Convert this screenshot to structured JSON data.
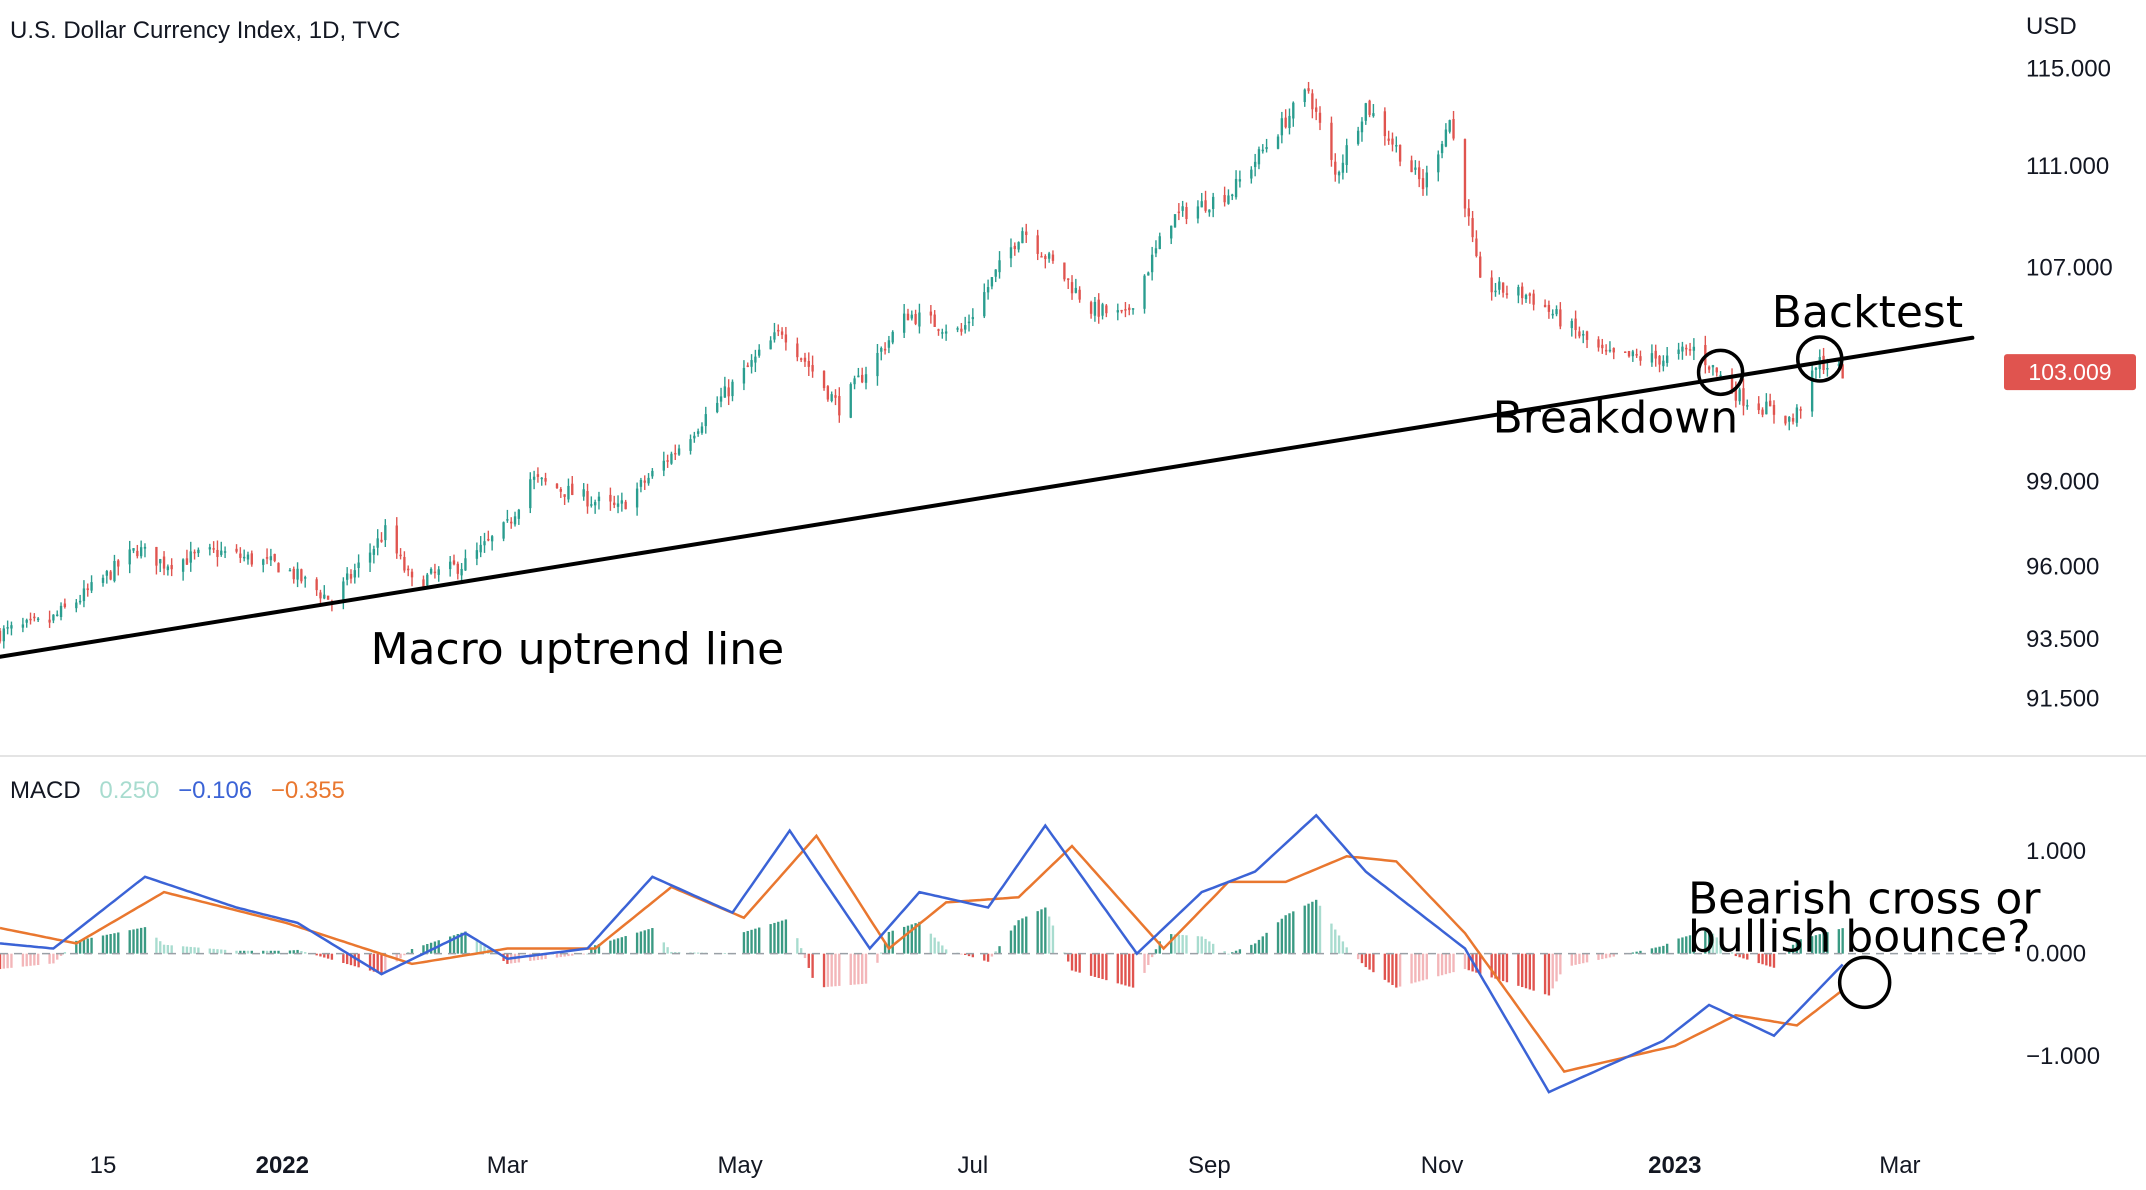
{
  "header": {
    "title": "U.S. Dollar Currency Index, 1D, TVC",
    "currency": "USD"
  },
  "price_badge": {
    "value": "103.009",
    "color": "#e0544f"
  },
  "macd_legend": {
    "label": "MACD",
    "histogram": "0.250",
    "macd": "−0.106",
    "signal": "−0.355",
    "histogram_color": "#a8dccf",
    "macd_color": "#3b63d6",
    "signal_color": "#e9772f"
  },
  "colors": {
    "up": "#2a9d8f",
    "down": "#e0544f",
    "hist_up_strong": "#3a9a83",
    "hist_up_weak": "#a8dccf",
    "hist_down_strong": "#e0544f",
    "hist_down_weak": "#f3b6b9",
    "annotation": "#000000",
    "axis_text": "#131722",
    "divider": "#e4e4e4"
  },
  "annotations": {
    "trendline_label": "Macro uptrend line",
    "breakdown_label": "Breakdown",
    "backtest_label": "Backtest",
    "question_line1": "Bearish cross or",
    "question_line2": "bullish bounce?"
  },
  "chart_data": [
    {
      "type": "candlestick",
      "title": "U.S. Dollar Currency Index, 1D, TVC",
      "ylabel": "USD",
      "y_scale": "log",
      "yticks": [
        "115.000",
        "111.000",
        "107.000",
        "99.000",
        "96.000",
        "93.500",
        "91.500"
      ],
      "ytick_values": [
        115,
        111,
        107,
        99,
        96,
        93.5,
        91.5
      ],
      "x_tick_labels": [
        "15",
        "2022",
        "Mar",
        "May",
        "Jul",
        "Sep",
        "Nov",
        "2023",
        "Mar"
      ],
      "x_tick_dates": [
        "2021-11-15",
        "2022-01-01",
        "2022-03-01",
        "2022-05-01",
        "2022-07-01",
        "2022-09-01",
        "2022-11-01",
        "2023-01-01",
        "2023-03-01"
      ],
      "x_range": [
        "2021-10-19",
        "2023-03-22"
      ],
      "y_range": [
        90.3,
        116.2
      ],
      "last_value": 103.009,
      "close_path": [
        [
          "2021-10-19",
          93.7
        ],
        [
          "2021-11-01",
          94.1
        ],
        [
          "2021-11-12",
          95.2
        ],
        [
          "2021-11-24",
          96.6
        ],
        [
          "2021-12-01",
          96.1
        ],
        [
          "2021-12-15",
          96.5
        ],
        [
          "2022-01-01",
          96.0
        ],
        [
          "2022-01-14",
          94.8
        ],
        [
          "2022-01-28",
          97.2
        ],
        [
          "2022-02-04",
          95.4
        ],
        [
          "2022-02-18",
          96.1
        ],
        [
          "2022-03-01",
          97.4
        ],
        [
          "2022-03-07",
          99.1
        ],
        [
          "2022-03-30",
          98.0
        ],
        [
          "2022-04-14",
          100.1
        ],
        [
          "2022-05-12",
          104.6
        ],
        [
          "2022-05-27",
          101.7
        ],
        [
          "2022-06-14",
          105.2
        ],
        [
          "2022-06-28",
          104.5
        ],
        [
          "2022-07-14",
          108.5
        ],
        [
          "2022-08-01",
          105.4
        ],
        [
          "2022-08-10",
          105.1
        ],
        [
          "2022-08-22",
          108.9
        ],
        [
          "2022-09-07",
          110.0
        ],
        [
          "2022-09-27",
          114.1
        ],
        [
          "2022-10-04",
          110.6
        ],
        [
          "2022-10-12",
          113.5
        ],
        [
          "2022-10-27",
          110.2
        ],
        [
          "2022-11-03",
          112.9
        ],
        [
          "2022-11-11",
          106.3
        ],
        [
          "2022-11-24",
          105.9
        ],
        [
          "2022-12-14",
          103.6
        ],
        [
          "2022-12-30",
          103.5
        ],
        [
          "2023-01-06",
          103.9
        ],
        [
          "2023-01-18",
          102.1
        ],
        [
          "2023-02-01",
          101.2
        ],
        [
          "2023-02-08",
          103.4
        ],
        [
          "2023-02-14",
          103.009
        ]
      ],
      "trendline": {
        "label": "Macro uptrend line",
        "from": [
          "2021-10-19",
          92.9
        ],
        "to": [
          "2023-03-20",
          104.3
        ]
      },
      "markers": [
        {
          "label": "Breakdown",
          "date": "2023-01-13",
          "value": 103.0
        },
        {
          "label": "Backtest",
          "date": "2023-02-08",
          "value": 103.5
        }
      ]
    },
    {
      "type": "macd",
      "title": "MACD",
      "legend": {
        "histogram": 0.25,
        "macd": -0.106,
        "signal": -0.355
      },
      "yticks": [
        "1.000",
        "0.000",
        "−1.000"
      ],
      "ytick_values": [
        1,
        0,
        -1
      ],
      "y_range": [
        -1.72,
        1.45
      ],
      "macd_path": [
        [
          "2021-10-19",
          0.1
        ],
        [
          "2021-11-02",
          0.05
        ],
        [
          "2021-11-26",
          0.75
        ],
        [
          "2021-12-20",
          0.45
        ],
        [
          "2022-01-05",
          0.3
        ],
        [
          "2022-01-27",
          -0.2
        ],
        [
          "2022-02-18",
          0.2
        ],
        [
          "2022-03-01",
          -0.05
        ],
        [
          "2022-03-22",
          0.05
        ],
        [
          "2022-04-08",
          0.75
        ],
        [
          "2022-04-29",
          0.4
        ],
        [
          "2022-05-14",
          1.2
        ],
        [
          "2022-06-04",
          0.05
        ],
        [
          "2022-06-17",
          0.6
        ],
        [
          "2022-07-05",
          0.45
        ],
        [
          "2022-07-20",
          1.25
        ],
        [
          "2022-08-13",
          0.0
        ],
        [
          "2022-08-30",
          0.6
        ],
        [
          "2022-09-13",
          0.8
        ],
        [
          "2022-09-29",
          1.35
        ],
        [
          "2022-10-12",
          0.8
        ],
        [
          "2022-11-07",
          0.05
        ],
        [
          "2022-11-29",
          -1.35
        ],
        [
          "2022-12-29",
          -0.85
        ],
        [
          "2023-01-10",
          -0.5
        ],
        [
          "2023-01-27",
          -0.8
        ],
        [
          "2023-02-14",
          -0.106
        ]
      ],
      "signal_path": [
        [
          "2021-10-19",
          0.25
        ],
        [
          "2021-11-08",
          0.1
        ],
        [
          "2021-12-01",
          0.6
        ],
        [
          "2022-01-02",
          0.3
        ],
        [
          "2022-02-04",
          -0.1
        ],
        [
          "2022-03-01",
          0.05
        ],
        [
          "2022-03-24",
          0.05
        ],
        [
          "2022-04-13",
          0.65
        ],
        [
          "2022-05-02",
          0.35
        ],
        [
          "2022-05-21",
          1.15
        ],
        [
          "2022-06-09",
          0.05
        ],
        [
          "2022-06-24",
          0.5
        ],
        [
          "2022-07-13",
          0.55
        ],
        [
          "2022-07-27",
          1.05
        ],
        [
          "2022-08-20",
          0.05
        ],
        [
          "2022-09-06",
          0.7
        ],
        [
          "2022-09-21",
          0.7
        ],
        [
          "2022-10-07",
          0.95
        ],
        [
          "2022-10-20",
          0.9
        ],
        [
          "2022-11-07",
          0.2
        ],
        [
          "2022-12-03",
          -1.15
        ],
        [
          "2023-01-01",
          -0.9
        ],
        [
          "2023-01-17",
          -0.6
        ],
        [
          "2023-02-02",
          -0.7
        ],
        [
          "2023-02-14",
          -0.355
        ]
      ],
      "histogram_note": "histogram = macd − signal"
    }
  ]
}
